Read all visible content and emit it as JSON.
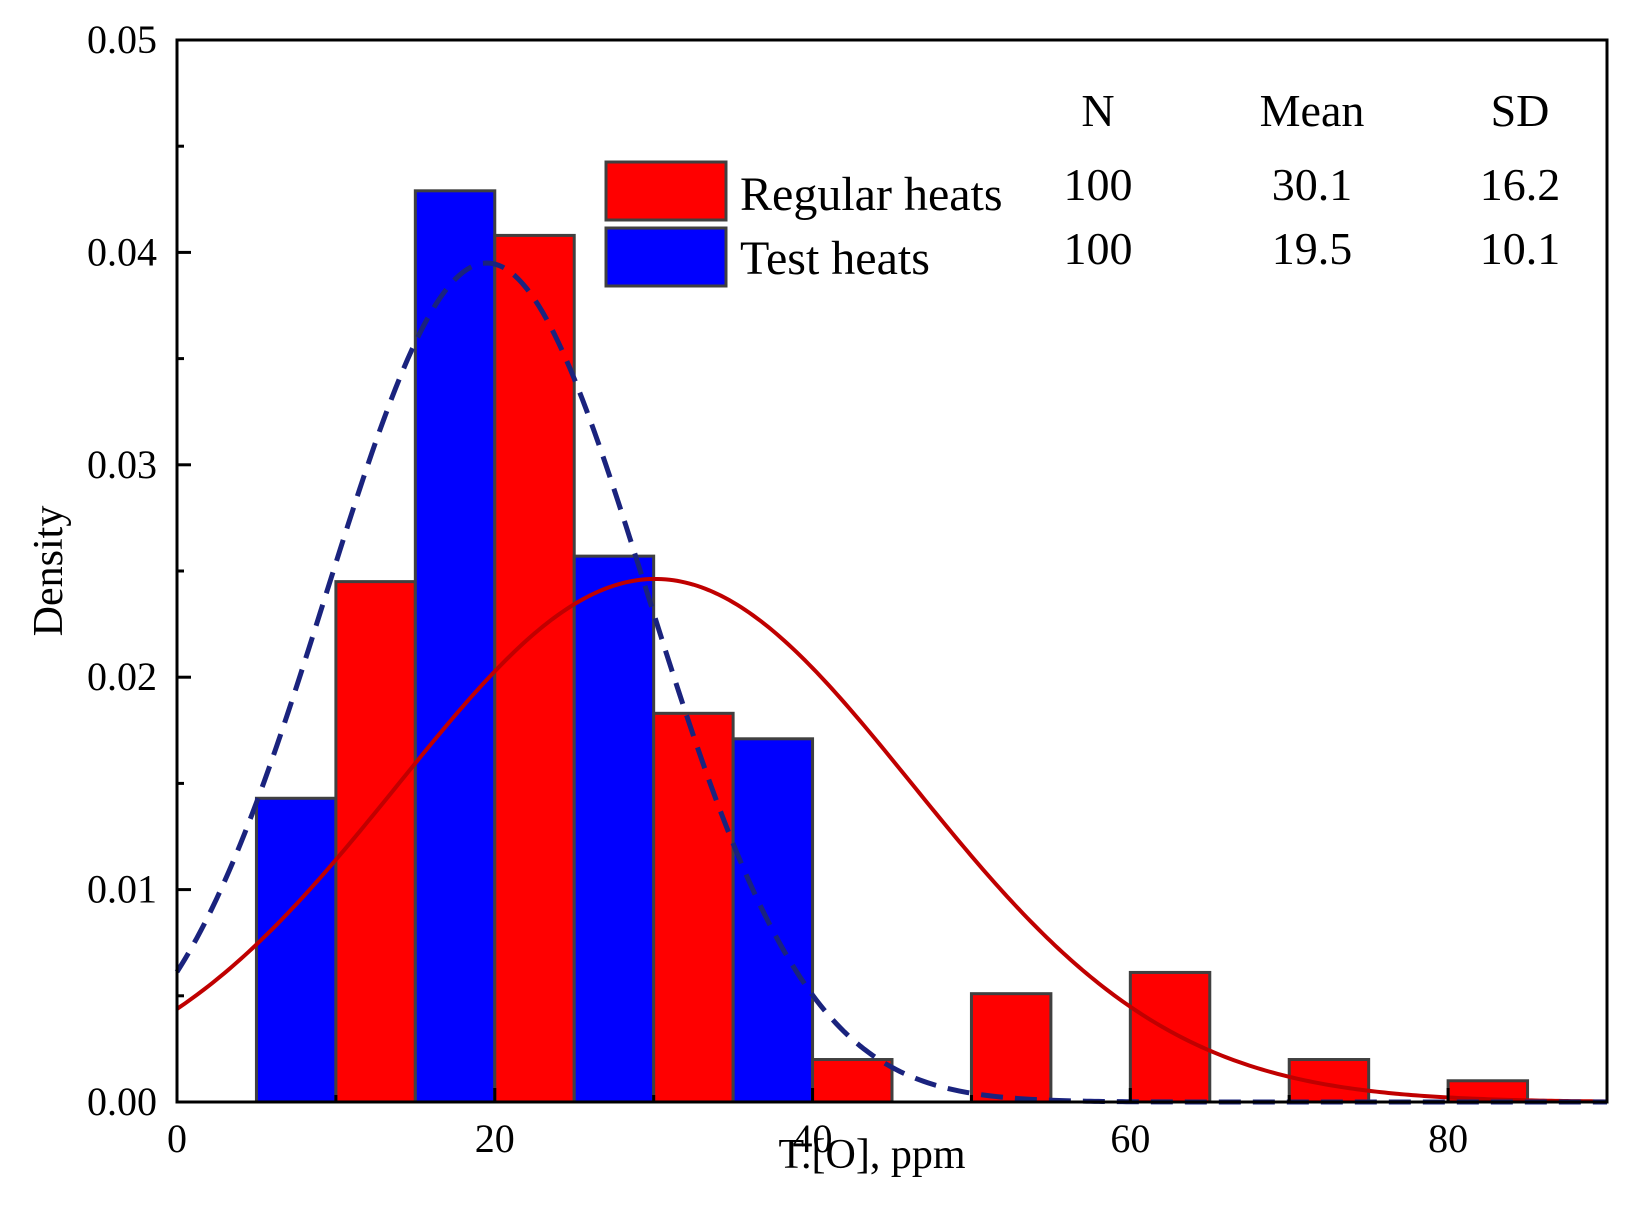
{
  "chart_data": {
    "type": "bar",
    "xlabel": "T.[O],  ppm",
    "ylabel": "Density",
    "xlim": [
      0,
      90
    ],
    "ylim": [
      0,
      0.05
    ],
    "x_ticks": [
      0,
      20,
      40,
      60,
      80
    ],
    "x_tick_labels": [
      "0",
      "20",
      "40",
      "60",
      "80"
    ],
    "y_ticks": [
      0,
      0.01,
      0.02,
      0.03,
      0.04,
      0.05
    ],
    "y_tick_labels": [
      "0.00",
      "0.01",
      "0.02",
      "0.03",
      "0.04",
      "0.05"
    ],
    "legend_position": "top-center",
    "series": [
      {
        "name": "Regular heats",
        "color": "#ff0000",
        "bins": [
          {
            "x0": 10,
            "x1": 15,
            "density": 0.0245
          },
          {
            "x0": 20,
            "x1": 25,
            "density": 0.0408
          },
          {
            "x0": 30,
            "x1": 35,
            "density": 0.0183
          },
          {
            "x0": 40,
            "x1": 45,
            "density": 0.002
          },
          {
            "x0": 50,
            "x1": 55,
            "density": 0.0051
          },
          {
            "x0": 60,
            "x1": 65,
            "density": 0.0061
          },
          {
            "x0": 70,
            "x1": 75,
            "density": 0.002
          },
          {
            "x0": 80,
            "x1": 85,
            "density": 0.001
          }
        ],
        "fit": {
          "type": "normal",
          "mean": 30.1,
          "sd": 16.2,
          "color": "#c00000",
          "style": "solid"
        }
      },
      {
        "name": "Test heats",
        "color": "#0000ff",
        "bins": [
          {
            "x0": 5,
            "x1": 10,
            "density": 0.0143
          },
          {
            "x0": 15,
            "x1": 20,
            "density": 0.0429
          },
          {
            "x0": 25,
            "x1": 30,
            "density": 0.0257
          },
          {
            "x0": 35,
            "x1": 40,
            "density": 0.0171
          }
        ],
        "fit": {
          "type": "normal",
          "mean": 19.5,
          "sd": 10.1,
          "color": "#1a237e",
          "style": "dashed"
        }
      }
    ],
    "stats_table": {
      "headers": [
        "N",
        "Mean",
        "SD"
      ],
      "rows": [
        {
          "N": "100",
          "Mean": "30.1",
          "SD": "16.2"
        },
        {
          "N": "100",
          "Mean": "19.5",
          "SD": "10.1"
        }
      ]
    }
  }
}
